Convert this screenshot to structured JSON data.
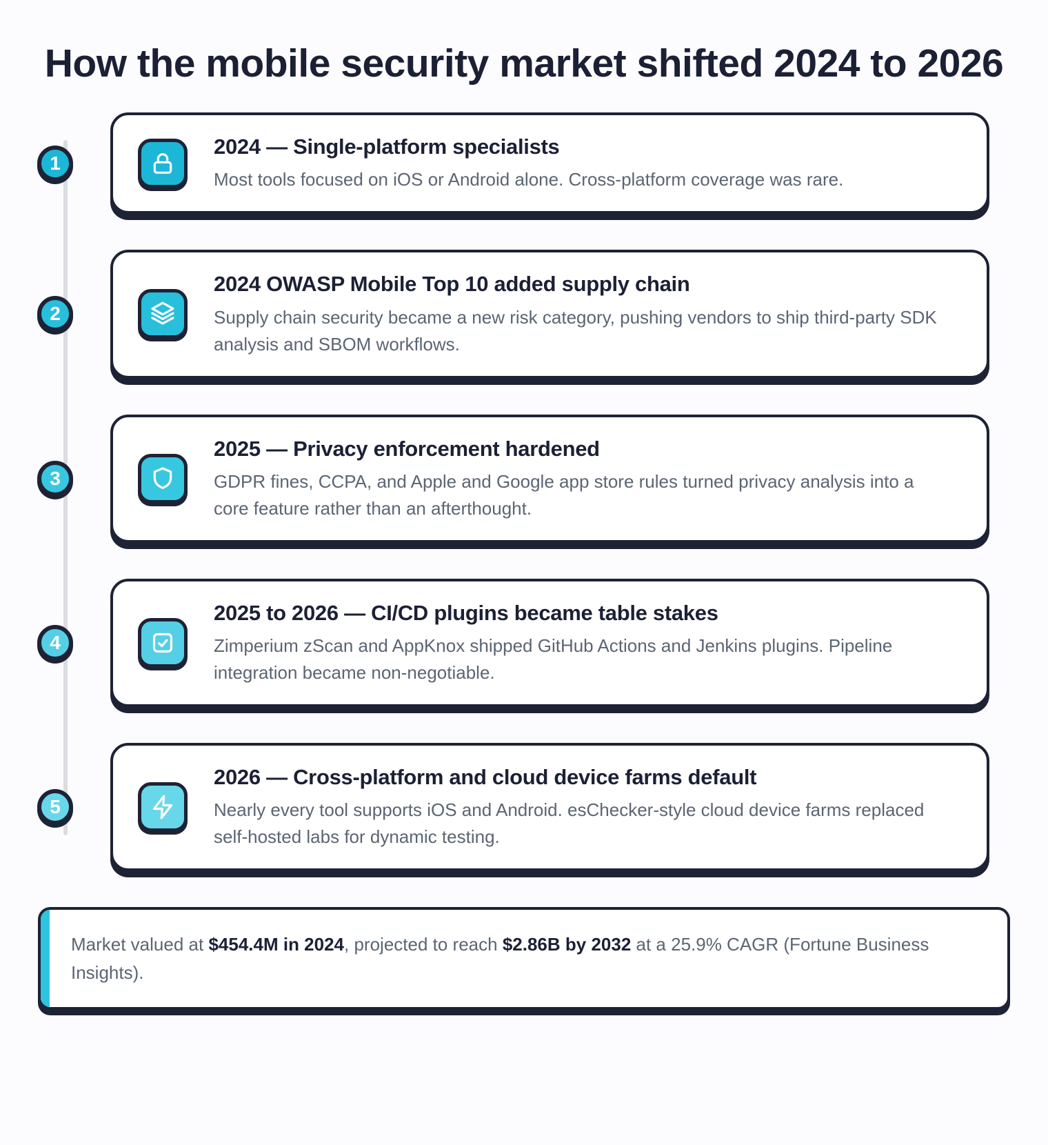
{
  "page": {
    "title": "How the mobile security market shifted 2024 to 2026",
    "background": "#fcfcfe"
  },
  "colors": {
    "navy_border": "#1e2235",
    "heading_text": "#1b2035",
    "body_text": "#5b6573",
    "timeline_line": "#dcdde1",
    "footer_accent": "#2ec4df",
    "card_bg": "#ffffff"
  },
  "timeline": {
    "items": [
      {
        "number": "1",
        "icon": "lock-icon",
        "color": "#1cb7d7",
        "title": "2024 — Single-platform specialists",
        "description": "Most tools focused on iOS or Android alone. Cross-platform coverage was rare."
      },
      {
        "number": "2",
        "icon": "layers-icon",
        "color": "#27bfdc",
        "title": "2024 OWASP Mobile Top 10 added supply chain",
        "description": "Supply chain security became a new risk category, pushing vendors to ship third-party SDK analysis and SBOM workflows."
      },
      {
        "number": "3",
        "icon": "shield-icon",
        "color": "#38c7e0",
        "title": "2025 — Privacy enforcement hardened",
        "description": "GDPR fines, CCPA, and Apple and Google app store rules turned privacy analysis into a core feature rather than an afterthought."
      },
      {
        "number": "4",
        "icon": "square-check-icon",
        "color": "#55cfe6",
        "title": "2025 to 2026 — CI/CD plugins became table stakes",
        "description": "Zimperium zScan and AppKnox shipped GitHub Actions and Jenkins plugins. Pipeline integration became non-negotiable."
      },
      {
        "number": "5",
        "icon": "zap-icon",
        "color": "#68d7ea",
        "title": "2026 — Cross-platform and cloud device farms default",
        "description": "Nearly every tool supports iOS and Android. esChecker-style cloud device farms replaced self-hosted labs for dynamic testing."
      }
    ]
  },
  "footer": {
    "prefix": "Market valued at ",
    "bold1": "$454.4M in 2024",
    "middle": ", projected to reach ",
    "bold2": "$2.86B by 2032",
    "suffix": " at a 25.9% CAGR (Fortune Business Insights)."
  }
}
